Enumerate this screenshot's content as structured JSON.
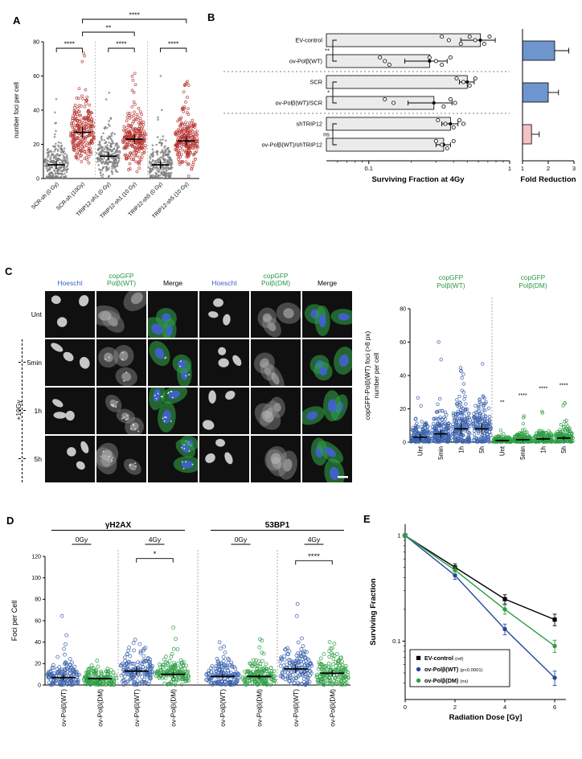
{
  "panel_a": {
    "letter": "A",
    "chart_data": {
      "type": "scatter",
      "ylabel": "number foci per cell",
      "ylim": [
        0,
        80
      ],
      "yticks": [
        0,
        20,
        40,
        60,
        80
      ],
      "point_colors": {
        "untreated": "#7a7a7a",
        "irradiated": "#b63532"
      },
      "categories": [
        {
          "label": "SCR-sh (0 Gy)",
          "group": "untreated",
          "median": 8,
          "spread": 6,
          "max": 62,
          "n": 240
        },
        {
          "label": "SCR-sh (10Gy)",
          "group": "irradiated",
          "median": 27,
          "spread": 8,
          "max": 76,
          "n": 240
        },
        {
          "label": "TRIP12-sh1 (0 Gy)",
          "group": "untreated",
          "median": 13,
          "spread": 6,
          "max": 56,
          "n": 240
        },
        {
          "label": "TRIP12-sh1 (10 Gy)",
          "group": "irradiated",
          "median": 23,
          "spread": 7,
          "max": 62,
          "n": 240
        },
        {
          "label": "TRIP12-sh5 (0 Gy)",
          "group": "untreated",
          "median": 8,
          "spread": 6,
          "max": 60,
          "n": 240
        },
        {
          "label": "TRIP12-sh5 (10 Gy)",
          "group": "irradiated",
          "median": 22,
          "spread": 7,
          "max": 58,
          "n": 240
        }
      ],
      "significance": [
        {
          "from": 0,
          "to": 1,
          "label": "****",
          "level": 0
        },
        {
          "from": 2,
          "to": 3,
          "label": "****",
          "level": 0
        },
        {
          "from": 4,
          "to": 5,
          "label": "****",
          "level": 0
        },
        {
          "from": 1,
          "to": 3,
          "label": "**",
          "level": 1
        },
        {
          "from": 1,
          "to": 5,
          "label": "****",
          "level": 2
        }
      ]
    }
  },
  "panel_b": {
    "letter": "B",
    "chart_data": [
      {
        "type": "bar",
        "xlabel": "Surviving Fraction at 4Gy",
        "xscale": "log",
        "xlim": [
          0.05,
          1
        ],
        "xticks": [
          0.1,
          1
        ],
        "bar_fill": "#ebebeb",
        "rows": [
          {
            "label": "EV-control",
            "mean": 0.62,
            "sem": 0.17,
            "points": [
              0.33,
              0.37,
              0.45,
              0.52,
              0.57,
              0.66,
              0.72
            ]
          },
          {
            "label": "ov-Polβ(WT)",
            "mean": 0.27,
            "sem": 0.09,
            "points": [
              0.12,
              0.13,
              0.14,
              0.27,
              0.3,
              0.33,
              0.38
            ]
          },
          {
            "label": "SCR",
            "mean": 0.5,
            "sem": 0.06,
            "points": [
              0.42,
              0.47,
              0.52,
              0.57
            ]
          },
          {
            "label": "ov-Polβ(WT)/SCR",
            "mean": 0.29,
            "sem": 0.1,
            "points": [
              0.13,
              0.15,
              0.34,
              0.38,
              0.41
            ]
          },
          {
            "label": "shTRIP12",
            "mean": 0.38,
            "sem": 0.05,
            "points": [
              0.31,
              0.35,
              0.4,
              0.44,
              0.47
            ]
          },
          {
            "label": "ov-Polβ(WT)/shTRIP12",
            "mean": 0.34,
            "sem": 0.04,
            "points": [
              0.3,
              0.33,
              0.36,
              0.4
            ]
          }
        ],
        "significance": [
          {
            "rows": [
              0,
              1
            ],
            "label": "**"
          },
          {
            "rows": [
              2,
              3
            ],
            "label": "*"
          },
          {
            "rows": [
              4,
              5
            ],
            "label": "ns"
          }
        ]
      },
      {
        "type": "bar",
        "xlabel": "Fold Reduction",
        "xlim": [
          1,
          3
        ],
        "xticks": [
          1,
          2,
          3
        ],
        "bars": [
          {
            "value": 2.25,
            "error": 0.55,
            "color": "#6f95ce"
          },
          {
            "value": 2.0,
            "error": 0.4,
            "color": "#6f95ce"
          },
          {
            "value": 1.35,
            "error": 0.3,
            "color": "#f5c1c4"
          }
        ]
      }
    ]
  },
  "panel_c": {
    "letter": "C",
    "microscopy": {
      "col_headers": [
        {
          "line1": "Hoescht",
          "line2": "",
          "color": "#3a62c9"
        },
        {
          "line1": "copGFP",
          "line2": "Polβ(WT)",
          "color": "#27963f"
        },
        {
          "line1": "Merge",
          "line2": "",
          "color": "#000000"
        },
        {
          "line1": "Hoescht",
          "line2": "",
          "color": "#3a62c9"
        },
        {
          "line1": "copGFP",
          "line2": "Polβ(DM)",
          "color": "#27963f"
        },
        {
          "line1": "Merge",
          "line2": "",
          "color": "#000000"
        }
      ],
      "row_labels": [
        "Unt",
        "5min",
        "1h",
        "5h"
      ],
      "treatment_label": "+10Gy",
      "scale_bar": true
    },
    "chart_data": {
      "type": "scatter",
      "ylabel_line1": "copGFP-Polβ(WT) foci (>8 px)",
      "ylabel_line2": "number per cell",
      "ylim": [
        0,
        80
      ],
      "yticks": [
        0,
        20,
        40,
        60,
        80
      ],
      "group_headers": [
        {
          "line1": "copGFP",
          "line2": "Polβ(WT)",
          "color": "#27963f"
        },
        {
          "line1": "copGFP",
          "line2": "Polβ(DM)",
          "color": "#27963f"
        }
      ],
      "categories": [
        {
          "label": "Unt",
          "color": "#3c63ad",
          "median": 3,
          "spread": 5,
          "max": 45,
          "n": 160
        },
        {
          "label": "5min",
          "color": "#3c63ad",
          "median": 5,
          "spread": 6,
          "max": 62,
          "n": 170
        },
        {
          "label": "1h",
          "color": "#3c63ad",
          "median": 8,
          "spread": 8,
          "max": 70,
          "n": 180
        },
        {
          "label": "5h",
          "color": "#3c63ad",
          "median": 8,
          "spread": 8,
          "max": 66,
          "n": 170
        },
        {
          "label": "Unt",
          "color": "#2e9e44",
          "median": 1,
          "spread": 1.6,
          "max": 14,
          "n": 130,
          "sig": "**"
        },
        {
          "label": "5min",
          "color": "#2e9e44",
          "median": 1.5,
          "spread": 2,
          "max": 18,
          "n": 130,
          "sig": "****"
        },
        {
          "label": "1h",
          "color": "#2e9e44",
          "median": 2,
          "spread": 2.6,
          "max": 22,
          "n": 130,
          "sig": "****"
        },
        {
          "label": "5h",
          "color": "#2e9e44",
          "median": 2.5,
          "spread": 3,
          "max": 24,
          "n": 130,
          "sig": "****"
        }
      ]
    }
  },
  "panel_d": {
    "letter": "D",
    "chart_data": {
      "type": "scatter",
      "ylabel": "Foci per Cell",
      "ylim": [
        0,
        120
      ],
      "yticks": [
        0,
        20,
        40,
        60,
        80,
        100,
        120
      ],
      "marker_headers": [
        {
          "label": "γH2AX"
        },
        {
          "label": "53BP1"
        }
      ],
      "dose_headers": [
        "0Gy",
        "4Gy",
        "0Gy",
        "4Gy"
      ],
      "categories": [
        {
          "label": "ov-Polβ(WT)",
          "color": "#3c63ad",
          "median": 7,
          "spread": 6,
          "max": 82,
          "n": 150
        },
        {
          "label": "ov-Polβ(DM)",
          "color": "#2e9e44",
          "median": 6,
          "spread": 5,
          "max": 45,
          "n": 150
        },
        {
          "label": "ov-Polβ(WT)",
          "color": "#3c63ad",
          "median": 13,
          "spread": 9,
          "max": 110,
          "n": 150
        },
        {
          "label": "ov-Polβ(DM)",
          "color": "#2e9e44",
          "median": 10,
          "spread": 7,
          "max": 62,
          "n": 150
        },
        {
          "label": "ov-Polβ(WT)",
          "color": "#3c63ad",
          "median": 8,
          "spread": 6,
          "max": 42,
          "n": 150
        },
        {
          "label": "ov-Polβ(DM)",
          "color": "#2e9e44",
          "median": 8,
          "spread": 6,
          "max": 46,
          "n": 150
        },
        {
          "label": "ov-Polβ(WT)",
          "color": "#3c63ad",
          "median": 15,
          "spread": 10,
          "max": 108,
          "n": 150
        },
        {
          "label": "ov-Polβ(DM)",
          "color": "#2e9e44",
          "median": 11,
          "spread": 8,
          "max": 68,
          "n": 150
        }
      ],
      "significance": [
        {
          "from": 2,
          "to": 3,
          "label": "*"
        },
        {
          "from": 6,
          "to": 7,
          "label": "****"
        }
      ]
    }
  },
  "panel_e": {
    "letter": "E",
    "chart_data": {
      "type": "line",
      "xlabel": "Radiation Dose [Gy]",
      "ylabel": "Surviving Fraction",
      "x": [
        0,
        2,
        4,
        6
      ],
      "xticks": [
        0,
        2,
        4,
        6
      ],
      "yscale": "log",
      "ylim": [
        0.03,
        1.2
      ],
      "yticks": [
        0.1,
        1
      ],
      "series": [
        {
          "name": "EV-control",
          "note": "(ref)",
          "color": "#000000",
          "marker": "square",
          "values": [
            1,
            0.5,
            0.25,
            0.16
          ],
          "errors": [
            0,
            0.04,
            0.025,
            0.02
          ]
        },
        {
          "name": "ov-Polβ(WT)",
          "note": "(p<0.0001)",
          "color": "#24479c",
          "marker": "circle",
          "values": [
            1,
            0.42,
            0.13,
            0.045
          ],
          "errors": [
            0,
            0.035,
            0.015,
            0.007
          ]
        },
        {
          "name": "ov-Polβ(DM)",
          "note": "(ns)",
          "color": "#2e9e44",
          "marker": "circle",
          "values": [
            1,
            0.47,
            0.2,
            0.09
          ],
          "errors": [
            0,
            0.035,
            0.02,
            0.012
          ]
        }
      ],
      "legend_position": "bottom-left"
    }
  }
}
